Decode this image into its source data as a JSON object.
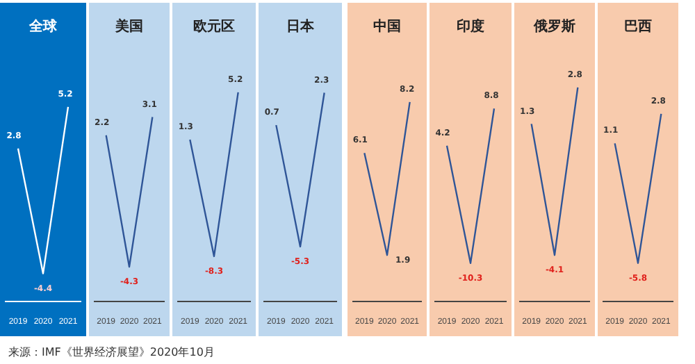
{
  "chart_data": [
    {
      "type": "line",
      "title": "全球",
      "categories": [
        "2019",
        "2020",
        "2021"
      ],
      "values": [
        2.8,
        -4.4,
        5.2
      ],
      "color": "#ffffff",
      "data_labels": true,
      "annotations": [
        "来源：IMF《世界经济展望》2020年10月"
      ]
    },
    {
      "type": "line",
      "title": "美国",
      "categories": [
        "2019",
        "2020",
        "2021"
      ],
      "values": [
        2.2,
        -4.3,
        3.1
      ],
      "color": "#2f5597",
      "data_labels": true
    },
    {
      "type": "line",
      "title": "欧元区",
      "categories": [
        "2019",
        "2020",
        "2021"
      ],
      "values": [
        1.3,
        -8.3,
        5.2
      ],
      "color": "#2f5597",
      "data_labels": true
    },
    {
      "type": "line",
      "title": "日本",
      "categories": [
        "2019",
        "2020",
        "2021"
      ],
      "values": [
        0.7,
        -5.3,
        2.3
      ],
      "color": "#2f5597",
      "data_labels": true
    },
    {
      "type": "line",
      "title": "中国",
      "categories": [
        "2019",
        "2020",
        "2021"
      ],
      "values": [
        6.1,
        1.9,
        8.2
      ],
      "color": "#2f5597",
      "data_labels": true
    },
    {
      "type": "line",
      "title": "印度",
      "categories": [
        "2019",
        "2020",
        "2021"
      ],
      "values": [
        4.2,
        -10.3,
        8.8
      ],
      "color": "#2f5597",
      "data_labels": true
    },
    {
      "type": "line",
      "title": "俄罗斯",
      "categories": [
        "2019",
        "2020",
        "2021"
      ],
      "values": [
        1.3,
        -4.1,
        2.8
      ],
      "color": "#2f5597",
      "data_labels": true
    },
    {
      "type": "line",
      "title": "巴西",
      "categories": [
        "2019",
        "2020",
        "2021"
      ],
      "values": [
        1.1,
        -5.8,
        2.8
      ],
      "color": "#2f5597",
      "data_labels": true
    }
  ]
}
